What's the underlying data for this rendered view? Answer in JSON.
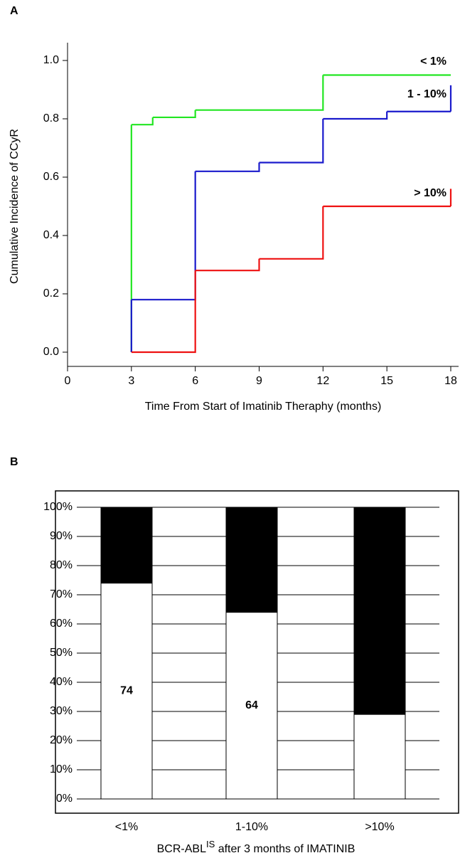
{
  "chart_data": [
    {
      "type": "line",
      "panel": "A",
      "step": "post",
      "y_label": "Cumulative Incidence of CCyR",
      "x_label": "Time From Start of Imatinib Theraphy (months)",
      "xlim": [
        0,
        18
      ],
      "xticks": [
        0,
        3,
        6,
        9,
        12,
        15,
        18
      ],
      "ylim": [
        0,
        1
      ],
      "yticks": [
        {
          "value": 0,
          "label": "0.0"
        },
        0.2,
        0.4,
        0.6,
        0.8,
        {
          "value": 1,
          "label": "1.0"
        }
      ],
      "series": [
        {
          "name": "< 1%",
          "color": "#22e622",
          "x": [
            3,
            3,
            4,
            6,
            12,
            18
          ],
          "values": [
            0,
            0.78,
            0.805,
            0.83,
            0.95,
            0.95
          ]
        },
        {
          "name": "1 - 10%",
          "color": "#1a1acc",
          "x": [
            3,
            3,
            6,
            9,
            12,
            15,
            18,
            18
          ],
          "values": [
            0,
            0.18,
            0.62,
            0.65,
            0.8,
            0.825,
            0.825,
            0.915
          ]
        },
        {
          "name": "> 10%",
          "color": "#ee1111",
          "x": [
            3,
            6,
            9,
            12,
            18,
            18
          ],
          "values": [
            0,
            0.28,
            0.32,
            0.5,
            0.5,
            0.56
          ]
        }
      ]
    },
    {
      "type": "bar",
      "panel": "B",
      "stacked": true,
      "grid": true,
      "x_label": {
        "text": "BCR-ABL",
        "superscript": "IS",
        "suffix": " after 3 months of IMATINIB"
      },
      "categories": [
        "<1%",
        "1-10%",
        ">10%"
      ],
      "ylim": [
        0,
        100
      ],
      "yticks": [
        {
          "value": 0,
          "label": "0%"
        },
        {
          "value": 10,
          "label": "10%"
        },
        {
          "value": 20,
          "label": "20%"
        },
        {
          "value": 30,
          "label": "30%"
        },
        {
          "value": 40,
          "label": "40%"
        },
        {
          "value": 50,
          "label": "50%"
        },
        {
          "value": 60,
          "label": "60%"
        },
        {
          "value": 70,
          "label": "70%"
        },
        {
          "value": 80,
          "label": "80%"
        },
        {
          "value": 90,
          "label": "90%"
        },
        {
          "value": 100,
          "label": "100%"
        }
      ],
      "series": [
        {
          "color": "#ffffff",
          "values": [
            74,
            64,
            29
          ],
          "show_labels": [
            true,
            true,
            false
          ]
        },
        {
          "color": "#000000",
          "values": [
            26,
            36,
            71
          ],
          "show_labels": [
            false,
            false,
            true
          ]
        }
      ]
    }
  ]
}
